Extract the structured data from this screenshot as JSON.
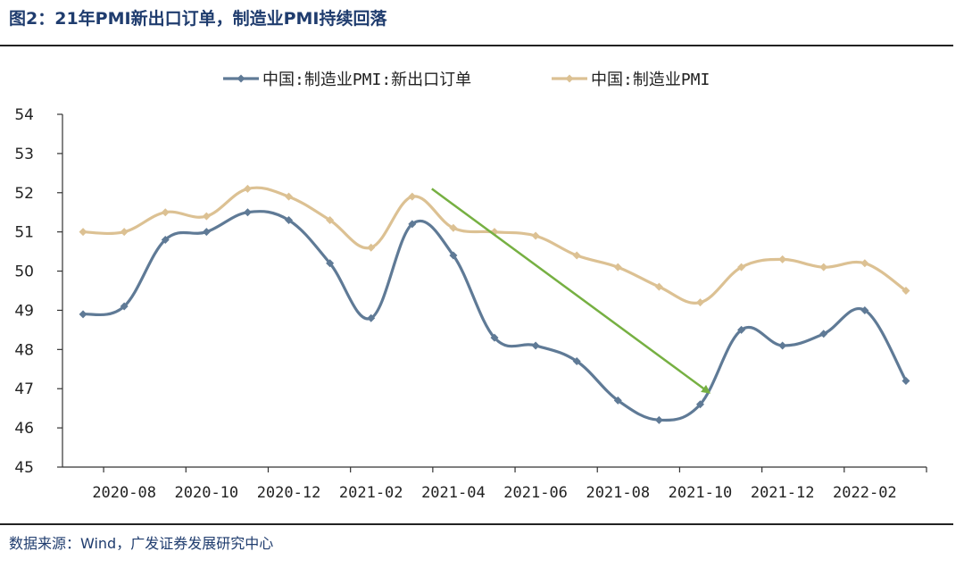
{
  "title": "图2：21年PMI新出口订单，制造业PMI持续回落",
  "source": "数据来源：Wind，广发证券发展研究中心",
  "chart_data": {
    "type": "line",
    "x": [
      "2020-07",
      "2020-08",
      "2020-09",
      "2020-10",
      "2020-11",
      "2020-12",
      "2021-01",
      "2021-02",
      "2021-03",
      "2021-04",
      "2021-05",
      "2021-06",
      "2021-07",
      "2021-08",
      "2021-09",
      "2021-10",
      "2021-11",
      "2021-12",
      "2022-01",
      "2022-02",
      "2022-03"
    ],
    "xtick_labels": [
      "2020-08",
      "2020-10",
      "2020-12",
      "2021-02",
      "2021-04",
      "2021-06",
      "2021-08",
      "2021-10",
      "2021-12",
      "2022-02"
    ],
    "ylim": [
      45,
      54
    ],
    "yticks": [
      45,
      46,
      47,
      48,
      49,
      50,
      51,
      52,
      53,
      54
    ],
    "legend_position": "top",
    "series": [
      {
        "name": "中国:制造业PMI:新出口订单",
        "color": "#5f7a96",
        "values": [
          48.9,
          49.1,
          50.8,
          51.0,
          51.5,
          51.3,
          50.2,
          48.8,
          51.2,
          50.4,
          48.3,
          48.1,
          47.7,
          46.7,
          46.2,
          46.6,
          48.5,
          48.1,
          48.4,
          49.0,
          47.2
        ]
      },
      {
        "name": "中国:制造业PMI",
        "color": "#dcc193",
        "values": [
          51.0,
          51.0,
          51.5,
          51.4,
          52.1,
          51.9,
          51.3,
          50.6,
          51.9,
          51.1,
          51.0,
          50.9,
          50.4,
          50.1,
          49.6,
          49.2,
          50.1,
          50.3,
          50.1,
          50.2,
          49.5
        ]
      }
    ],
    "annotation": {
      "type": "arrow",
      "color": "#76b042",
      "from": [
        "2021-03",
        52.1
      ],
      "to": [
        "2021-10",
        46.9
      ]
    }
  }
}
